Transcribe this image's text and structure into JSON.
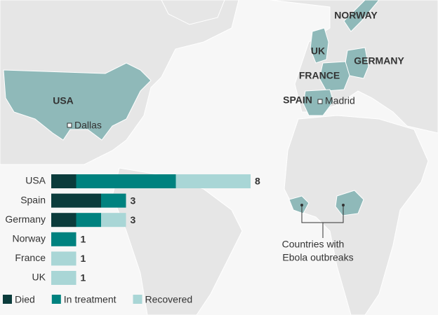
{
  "map": {
    "labels": [
      "USA",
      "Dallas",
      "NORWAY",
      "UK",
      "GERMANY",
      "FRANCE",
      "SPAIN",
      "Madrid",
      "Countries with",
      "Ebola outbreaks"
    ]
  },
  "chart_data": {
    "type": "stacked-bar-horizontal",
    "categories": [
      "USA",
      "Spain",
      "Germany",
      "Norway",
      "France",
      "UK"
    ],
    "series": [
      {
        "name": "Died",
        "color": "#0b3c3c",
        "values": [
          1,
          2,
          1,
          0,
          0,
          0
        ]
      },
      {
        "name": "In treatment",
        "color": "#00827f",
        "values": [
          4,
          1,
          1,
          1,
          0,
          0
        ]
      },
      {
        "name": "Recovered",
        "color": "#a9d6d6",
        "values": [
          3,
          0,
          1,
          0,
          1,
          1
        ]
      }
    ],
    "total_labels": [
      8,
      3,
      3,
      1,
      1,
      1
    ],
    "xlim": [
      0,
      8
    ]
  }
}
